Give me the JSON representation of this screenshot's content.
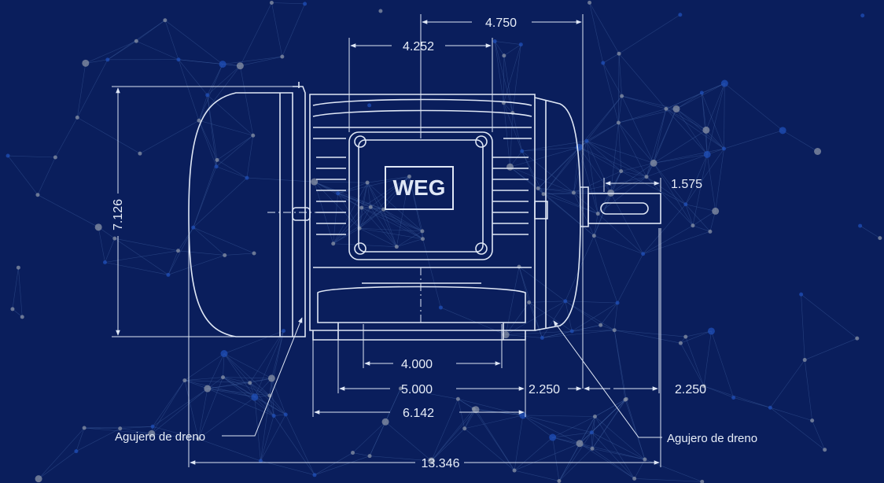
{
  "colors": {
    "background": "#0a1e5c",
    "lines": "#dfe7f5",
    "network_lines": "#3a5a9a",
    "network_nodes_gray": "#8a93a6",
    "network_nodes_blue": "#1f4fb8"
  },
  "logo": {
    "text": "WEG"
  },
  "dimensions": {
    "total_length": "13.346",
    "frame_length": "4.750",
    "terminal_box_width": "4.252",
    "height": "7.126",
    "shaft_length": "1.575",
    "foot_hole_inner": "4.000",
    "foot_hole_outer": "5.000",
    "foot_width": "6.142",
    "foot_to_shaft": "2.250",
    "shaft_extension": "2.250"
  },
  "labels": {
    "drain_hole_left": "Agujero de dreno",
    "drain_hole_right": "Agujero de dreno"
  }
}
